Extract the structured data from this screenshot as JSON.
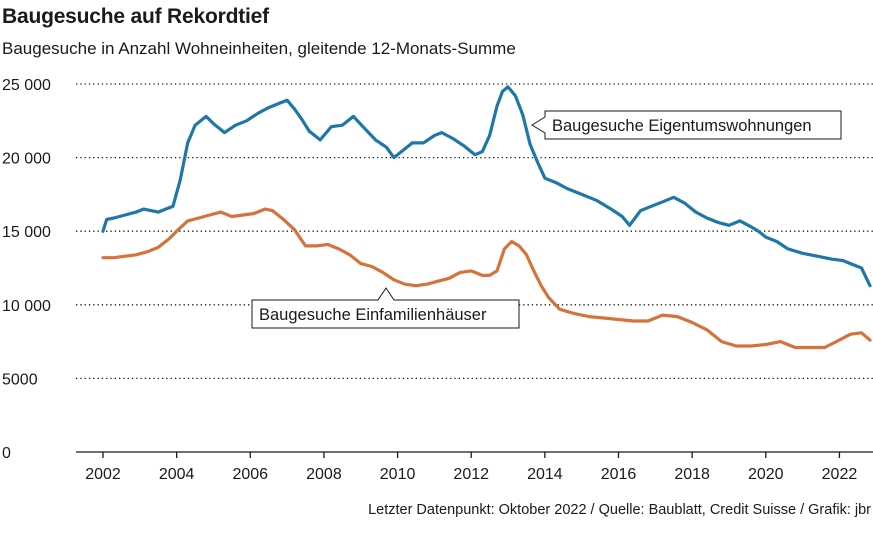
{
  "chart_title": "Baugesuche auf Rekordtief",
  "chart_subtitle": "Baugesuche in Anzahl Wohneinheiten, gleitende 12-Monats-Summe",
  "footer": "Letzter Datenpunkt: Oktober 2022 / Quelle: Baublatt, Credit Suisse / Grafik: jbr",
  "colors": {
    "eigentum": "#1f77a8",
    "efh": "#d4733a",
    "grid": "#1a1a1a"
  },
  "chart_data": {
    "type": "line",
    "title": "Baugesuche auf Rekordtief",
    "subtitle": "Baugesuche in Anzahl Wohneinheiten, gleitende 12-Monats-Summe",
    "xlim": [
      2002,
      2022.83
    ],
    "ylim": [
      0,
      25000
    ],
    "x_ticks": [
      "2002",
      "2004",
      "2006",
      "2008",
      "2010",
      "2012",
      "2014",
      "2016",
      "2018",
      "2020",
      "2022"
    ],
    "x_tick_values": [
      2002,
      2004,
      2006,
      2008,
      2010,
      2012,
      2014,
      2016,
      2018,
      2020,
      2022
    ],
    "y_ticks": [
      "0",
      "5000",
      "10000",
      "15000",
      "20000",
      "25000"
    ],
    "y_tick_labels": [
      "0",
      "5000",
      "10 000",
      "15 000",
      "20 000",
      "25 000"
    ],
    "grid": "horizontal dotted",
    "series": [
      {
        "name": "Baugesuche Eigentumswohnungen",
        "x": [
          2002.0,
          2002.1,
          2002.3,
          2002.6,
          2002.9,
          2003.1,
          2003.3,
          2003.5,
          2003.7,
          2003.9,
          2004.1,
          2004.3,
          2004.5,
          2004.8,
          2005.0,
          2005.3,
          2005.6,
          2005.9,
          2006.2,
          2006.5,
          2006.8,
          2007.0,
          2007.2,
          2007.4,
          2007.6,
          2007.9,
          2008.2,
          2008.5,
          2008.8,
          2009.1,
          2009.4,
          2009.7,
          2009.9,
          2010.1,
          2010.4,
          2010.7,
          2011.0,
          2011.2,
          2011.5,
          2011.8,
          2012.1,
          2012.3,
          2012.5,
          2012.7,
          2012.85,
          2013.0,
          2013.2,
          2013.4,
          2013.6,
          2013.8,
          2014.0,
          2014.3,
          2014.6,
          2015.0,
          2015.4,
          2015.8,
          2016.1,
          2016.3,
          2016.6,
          2016.9,
          2017.2,
          2017.5,
          2017.8,
          2018.1,
          2018.4,
          2018.7,
          2019.0,
          2019.3,
          2019.6,
          2019.8,
          2020.0,
          2020.3,
          2020.6,
          2021.0,
          2021.4,
          2021.8,
          2022.1,
          2022.4,
          2022.6,
          2022.83
        ],
        "values": [
          15000,
          15800,
          15900,
          16100,
          16300,
          16500,
          16400,
          16300,
          16500,
          16700,
          18500,
          21000,
          22200,
          22800,
          22300,
          21700,
          22200,
          22500,
          23000,
          23400,
          23700,
          23900,
          23300,
          22600,
          21800,
          21200,
          22100,
          22200,
          22800,
          22000,
          21200,
          20700,
          20000,
          20400,
          21000,
          21000,
          21500,
          21700,
          21300,
          20800,
          20200,
          20400,
          21500,
          23500,
          24500,
          24800,
          24200,
          22900,
          20900,
          19700,
          18600,
          18300,
          17900,
          17500,
          17100,
          16500,
          16000,
          15400,
          16400,
          16700,
          17000,
          17300,
          16900,
          16300,
          15900,
          15600,
          15400,
          15700,
          15300,
          15000,
          14600,
          14300,
          13800,
          13500,
          13300,
          13100,
          13000,
          12700,
          12500,
          11300
        ]
      },
      {
        "name": "Baugesuche Einfamilienhäuser",
        "x": [
          2002.0,
          2002.3,
          2002.6,
          2002.9,
          2003.2,
          2003.5,
          2003.8,
          2004.0,
          2004.3,
          2004.6,
          2004.9,
          2005.2,
          2005.5,
          2005.8,
          2006.1,
          2006.4,
          2006.6,
          2006.9,
          2007.2,
          2007.5,
          2007.8,
          2008.1,
          2008.4,
          2008.7,
          2009.0,
          2009.3,
          2009.6,
          2009.9,
          2010.2,
          2010.5,
          2010.8,
          2011.1,
          2011.4,
          2011.7,
          2012.0,
          2012.3,
          2012.5,
          2012.7,
          2012.9,
          2013.1,
          2013.3,
          2013.5,
          2013.7,
          2013.9,
          2014.1,
          2014.4,
          2014.8,
          2015.2,
          2015.6,
          2016.0,
          2016.4,
          2016.8,
          2017.2,
          2017.6,
          2018.0,
          2018.4,
          2018.8,
          2019.2,
          2019.6,
          2020.0,
          2020.4,
          2020.8,
          2021.2,
          2021.6,
          2022.0,
          2022.3,
          2022.6,
          2022.83
        ],
        "values": [
          13200,
          13200,
          13300,
          13400,
          13600,
          13900,
          14500,
          15000,
          15700,
          15900,
          16100,
          16300,
          16000,
          16100,
          16200,
          16500,
          16400,
          15800,
          15100,
          14000,
          14000,
          14100,
          13800,
          13400,
          12800,
          12600,
          12200,
          11700,
          11400,
          11300,
          11400,
          11600,
          11800,
          12200,
          12300,
          12000,
          12000,
          12300,
          13800,
          14300,
          14000,
          13400,
          12300,
          11300,
          10500,
          9700,
          9400,
          9200,
          9100,
          9000,
          8900,
          8900,
          9300,
          9200,
          8800,
          8300,
          7500,
          7200,
          7200,
          7300,
          7500,
          7100,
          7100,
          7100,
          7600,
          8000,
          8100,
          7600
        ]
      }
    ],
    "annotations": [
      {
        "text": "Baugesuche Eigentumswohnungen",
        "series": 0
      },
      {
        "text": "Baugesuche Einfamilienhäuser",
        "series": 1
      }
    ]
  }
}
